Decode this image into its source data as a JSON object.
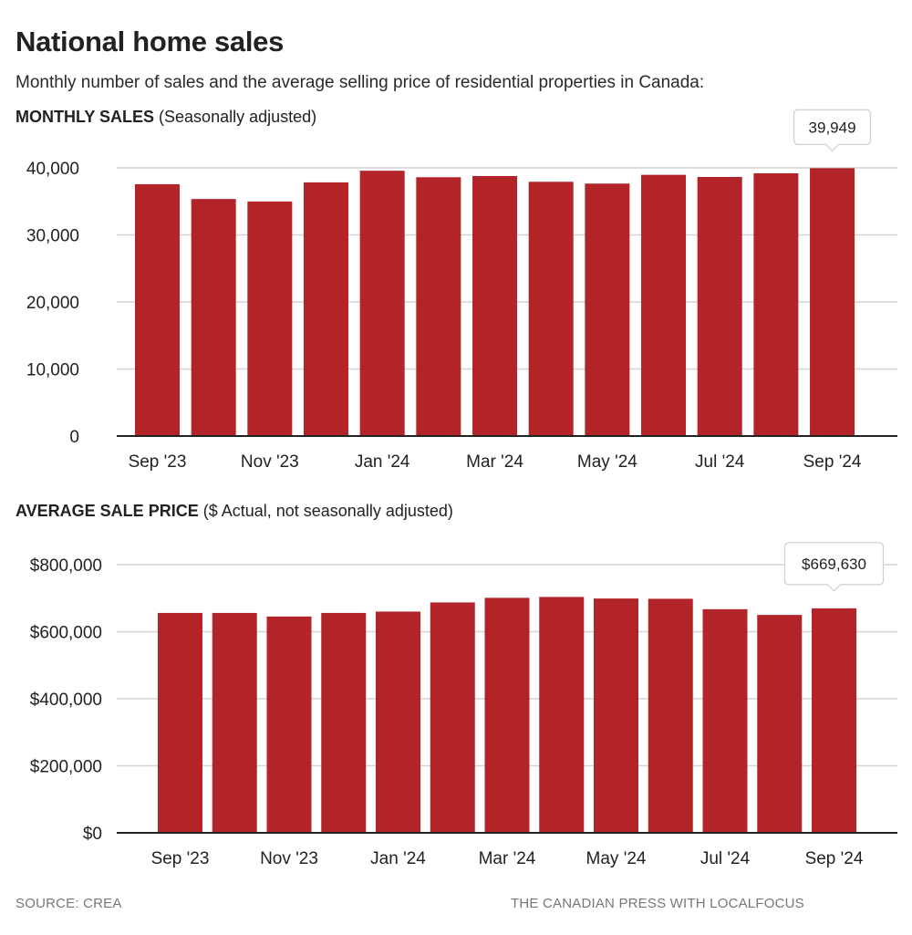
{
  "header": {
    "title": "National home sales",
    "subtitle": "Monthly number of sales and the average selling price of residential properties in Canada:"
  },
  "footer": {
    "source": "SOURCE:  CREA",
    "credit": "THE CANADIAN PRESS WITH LOCALFOCUS"
  },
  "colors": {
    "bar": "#B22427",
    "grid": "#d4d4d4",
    "axis": "#222222"
  },
  "chart_data": [
    {
      "type": "bar",
      "title_bold": "MONTHLY SALES",
      "title_rest": " (Seasonally adjusted)",
      "xlabel": "",
      "ylabel": "",
      "categories": [
        "Sep '23",
        "Oct '23",
        "Nov '23",
        "Dec '23",
        "Jan '24",
        "Feb '24",
        "Mar '24",
        "Apr '24",
        "May '24",
        "Jun '24",
        "Jul '24",
        "Aug '24",
        "Sep '24"
      ],
      "values": [
        37560,
        35350,
        34980,
        37830,
        39570,
        38600,
        38780,
        37920,
        37650,
        38960,
        38640,
        39190,
        39949
      ],
      "ylim": [
        0,
        40000
      ],
      "yticks": [
        0,
        10000,
        20000,
        30000,
        40000
      ],
      "ytick_labels": [
        "0",
        "10,000",
        "20,000",
        "30,000",
        "40,000"
      ],
      "xtick_labels": [
        "Sep '23",
        "Nov '23",
        "Jan '24",
        "Mar '24",
        "May '24",
        "Jul '24",
        "Sep '24"
      ],
      "xtick_indices": [
        0,
        2,
        4,
        6,
        8,
        10,
        12
      ],
      "grid": true,
      "legend": "none",
      "annotation": {
        "category": "Sep '24",
        "text": "39,949"
      }
    },
    {
      "type": "bar",
      "title_bold": "AVERAGE SALE PRICE",
      "title_rest": " ($ Actual, not seasonally adjusted)",
      "xlabel": "",
      "ylabel": "",
      "categories": [
        "Sep '23",
        "Oct '23",
        "Nov '23",
        "Dec '23",
        "Jan '24",
        "Feb '24",
        "Mar '24",
        "Apr '24",
        "May '24",
        "Jun '24",
        "Jul '24",
        "Aug '24",
        "Sep '24"
      ],
      "values": [
        656000,
        656000,
        645300,
        656000,
        660000,
        687300,
        701000,
        703600,
        699000,
        698200,
        667100,
        650000,
        669630
      ],
      "ylim": [
        0,
        800000
      ],
      "yticks": [
        0,
        200000,
        400000,
        600000,
        800000
      ],
      "ytick_labels": [
        "$0",
        "$200,000",
        "$400,000",
        "$600,000",
        "$800,000"
      ],
      "xtick_labels": [
        "Sep '23",
        "Nov '23",
        "Jan '24",
        "Mar '24",
        "May '24",
        "Jul '24",
        "Sep '24"
      ],
      "xtick_indices": [
        0,
        2,
        4,
        6,
        8,
        10,
        12
      ],
      "grid": true,
      "legend": "none",
      "annotation": {
        "category": "Sep '24",
        "text": "$669,630"
      }
    }
  ]
}
